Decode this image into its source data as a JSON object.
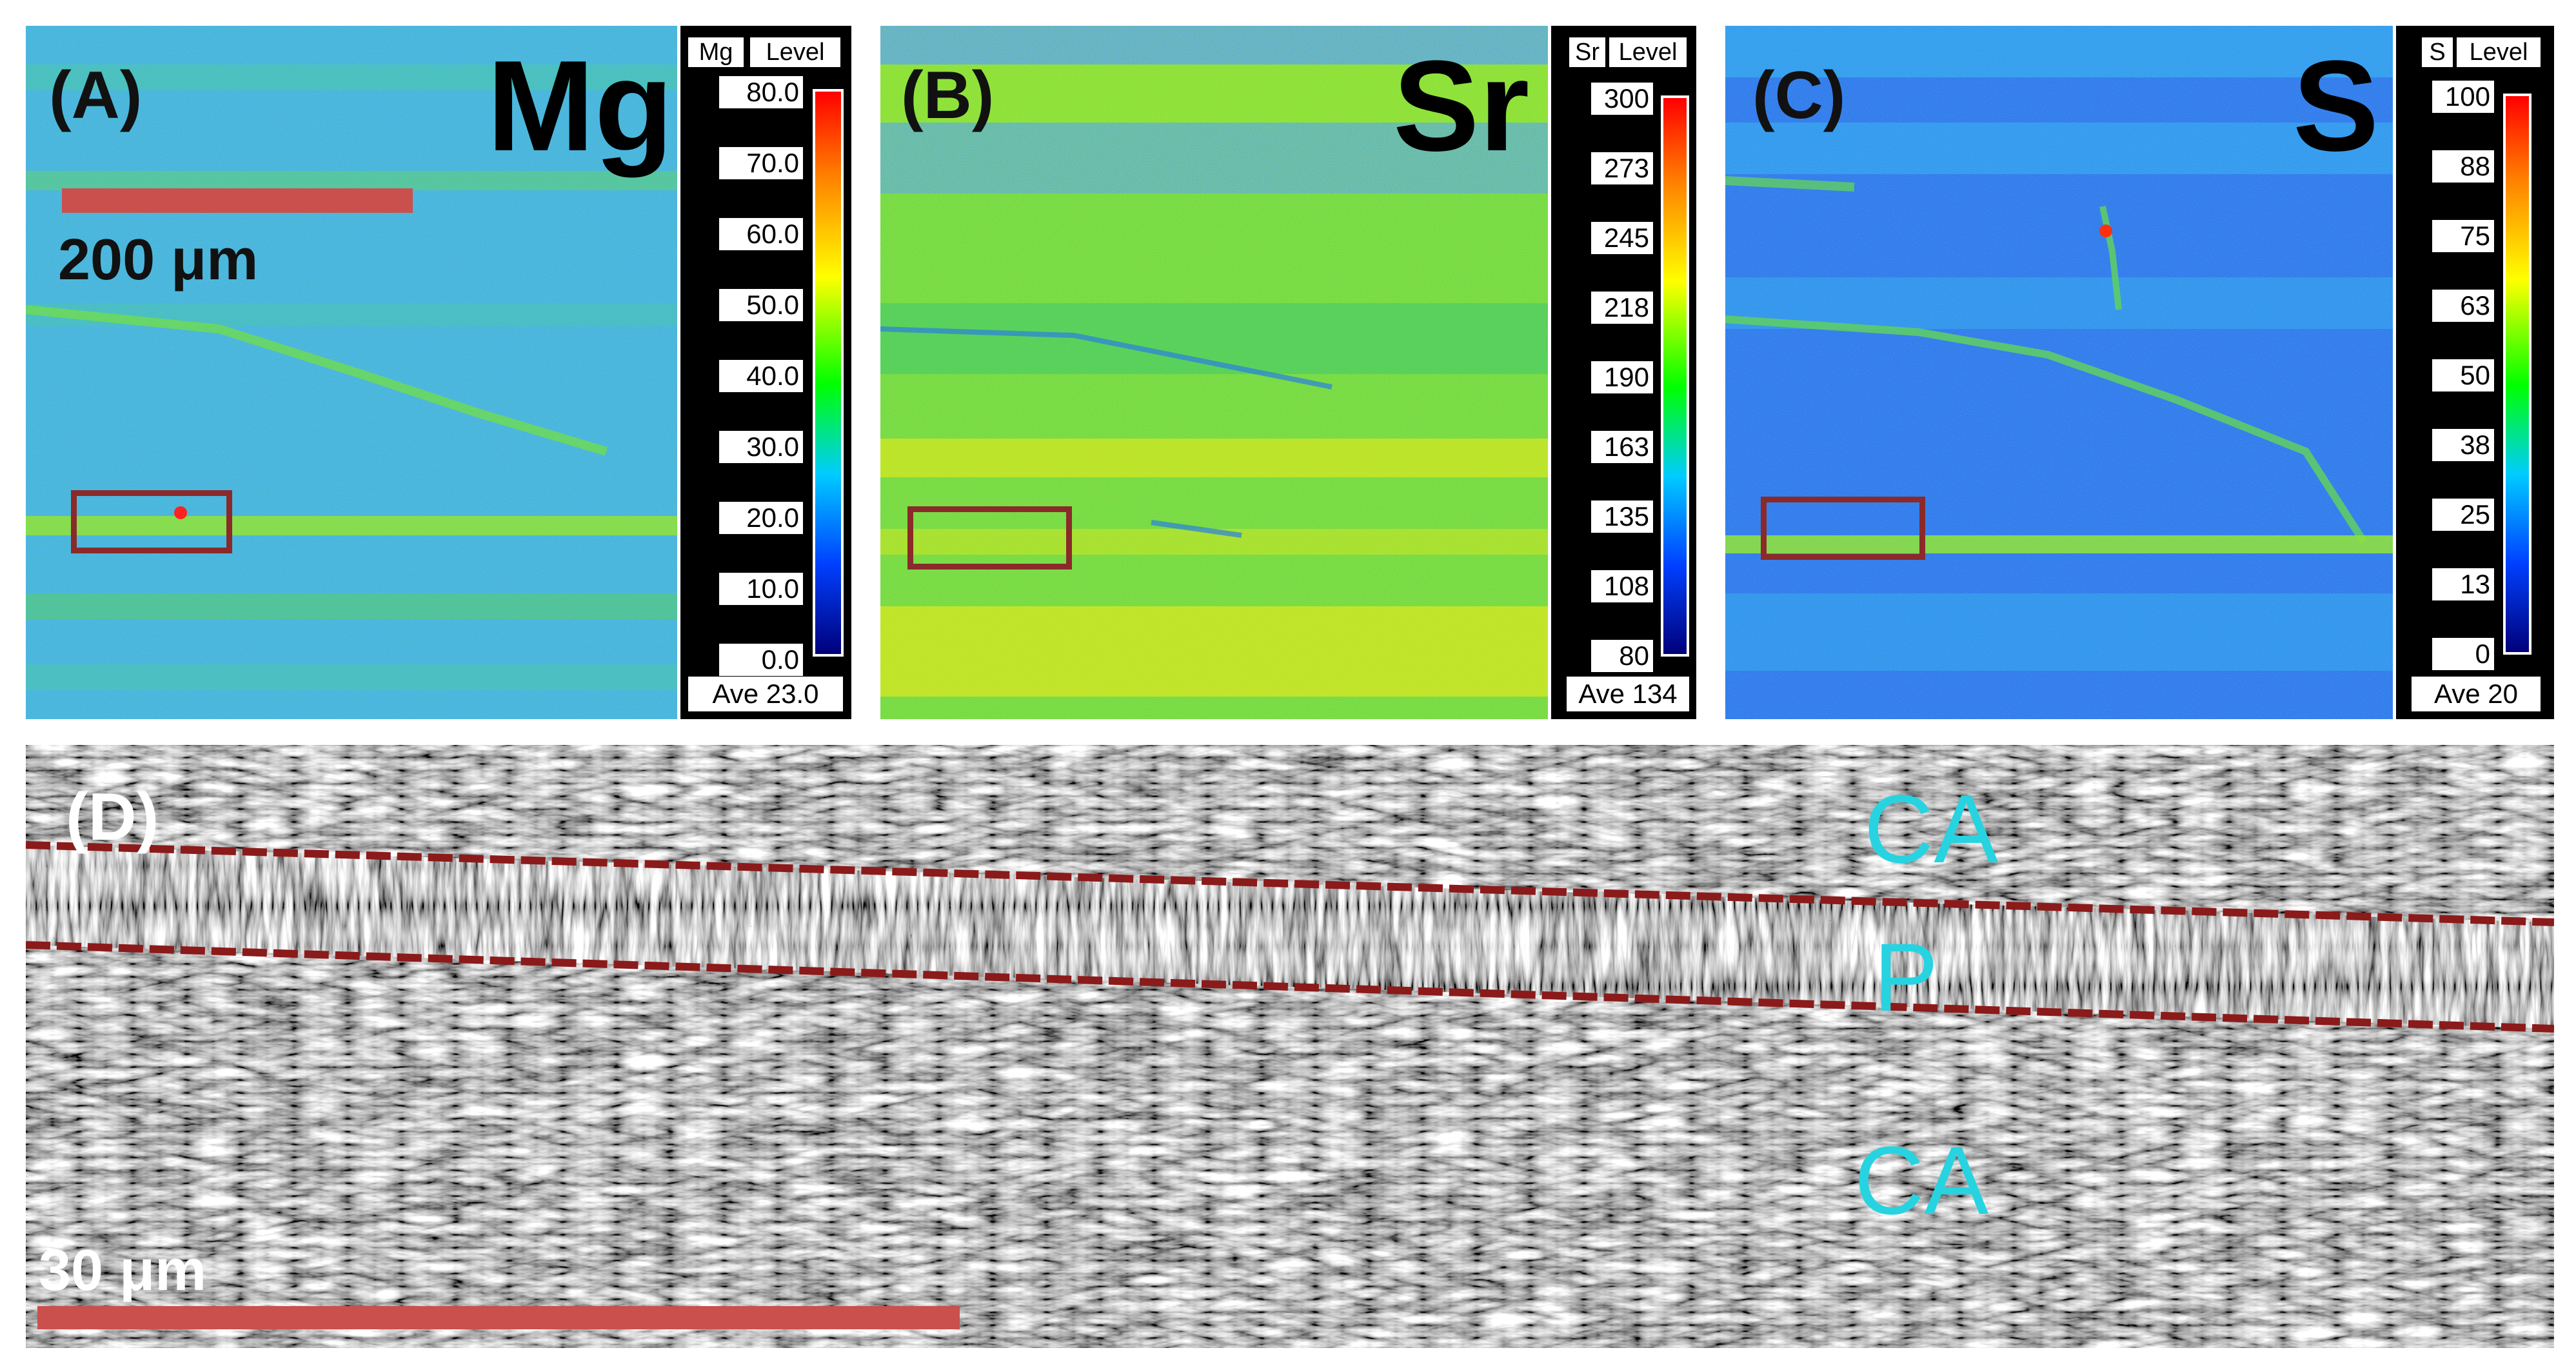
{
  "panels": [
    {
      "letter": "(A)",
      "element": "Mg",
      "legend": {
        "symbol": "Mg",
        "level": "Level",
        "ticks": [
          "80.0",
          "70.0",
          "60.0",
          "50.0",
          "40.0",
          "30.0",
          "20.0",
          "10.0",
          "0.0"
        ],
        "average": "Ave 23.0"
      },
      "scalebar": "200 μm",
      "base_color": "#3aa0f0"
    },
    {
      "letter": "(B)",
      "element": "Sr",
      "legend": {
        "symbol": "Sr",
        "level": "Level",
        "ticks": [
          "300",
          "273",
          "245",
          "218",
          "190",
          "163",
          "135",
          "108",
          "80"
        ],
        "average": "Ave 134"
      },
      "base_color": "#52d440"
    },
    {
      "letter": "(C)",
      "element": "S",
      "legend": {
        "symbol": "S",
        "level": "Level",
        "ticks": [
          "100",
          "88",
          "75",
          "63",
          "50",
          "38",
          "25",
          "13",
          "0"
        ],
        "average": "Ave 20"
      },
      "base_color": "#2a62e6"
    }
  ],
  "sem": {
    "letter": "(D)",
    "regions": {
      "top": "CA",
      "middle": "P",
      "bottom": "CA"
    },
    "scalebar": "30 μm"
  },
  "colors": {
    "roi": "#8b2a2a",
    "scalebar": "#c9504d",
    "region_label": "#27d3e0",
    "boundary": "#8b1a1a"
  }
}
